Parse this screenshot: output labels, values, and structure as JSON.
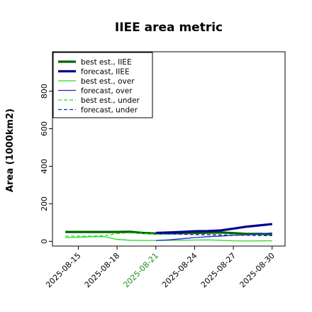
{
  "chart_data": {
    "type": "line",
    "title": "IIEE area metric",
    "xlabel": "",
    "ylabel": "Area (1000km2)",
    "x": [
      "2025-08-14",
      "2025-08-15",
      "2025-08-16",
      "2025-08-17",
      "2025-08-18",
      "2025-08-19",
      "2025-08-20",
      "2025-08-21",
      "2025-08-22",
      "2025-08-23",
      "2025-08-24",
      "2025-08-25",
      "2025-08-26",
      "2025-08-27",
      "2025-08-28",
      "2025-08-29",
      "2025-08-30"
    ],
    "xlim": [
      "2025-08-13",
      "2025-08-31"
    ],
    "ylim": [
      -25,
      1010
    ],
    "y_ticks": [
      0,
      200,
      400,
      600,
      800
    ],
    "x_ticks": [
      "2025-08-15",
      "2025-08-18",
      "2025-08-21",
      "2025-08-24",
      "2025-08-27",
      "2025-08-30"
    ],
    "highlight_tick": "2025-08-21",
    "highlight_color": "#228B22",
    "legend_position": "top-left",
    "series": [
      {
        "name": "best est., IIEE",
        "color": "#006400",
        "width": 3.2,
        "dash": "",
        "values": [
          50,
          50,
          50,
          50,
          50,
          51,
          45,
          42,
          43,
          44,
          45,
          46,
          47,
          44,
          40,
          40,
          38
        ]
      },
      {
        "name": "forecast, IIEE",
        "color": "#00008B",
        "width": 3.2,
        "dash": "",
        "values": [
          null,
          null,
          null,
          null,
          null,
          null,
          null,
          45,
          47,
          50,
          54,
          55,
          58,
          68,
          78,
          85,
          92
        ]
      },
      {
        "name": "best est., over",
        "color": "#22DD22",
        "width": 1.3,
        "dash": "",
        "values": [
          20,
          22,
          25,
          25,
          10,
          6,
          5,
          5,
          6,
          6,
          7,
          8,
          6,
          3,
          2,
          3,
          3
        ]
      },
      {
        "name": "forecast, over",
        "color": "#1F1FD0",
        "width": 1.3,
        "dash": "",
        "values": [
          null,
          null,
          null,
          null,
          null,
          null,
          null,
          5,
          8,
          14,
          20,
          25,
          28,
          32,
          35,
          40,
          45
        ]
      },
      {
        "name": "best est., under",
        "color": "#22DD22",
        "width": 1.3,
        "dash": "5,3",
        "values": [
          28,
          28,
          28,
          30,
          42,
          45,
          42,
          38,
          38,
          38,
          38,
          36,
          35,
          35,
          33,
          32,
          30
        ]
      },
      {
        "name": "forecast, under",
        "color": "#1F1FD0",
        "width": 1.3,
        "dash": "5,3",
        "values": [
          null,
          null,
          null,
          null,
          null,
          null,
          null,
          42,
          40,
          38,
          36,
          35,
          33,
          32,
          32,
          31,
          30
        ]
      }
    ]
  }
}
